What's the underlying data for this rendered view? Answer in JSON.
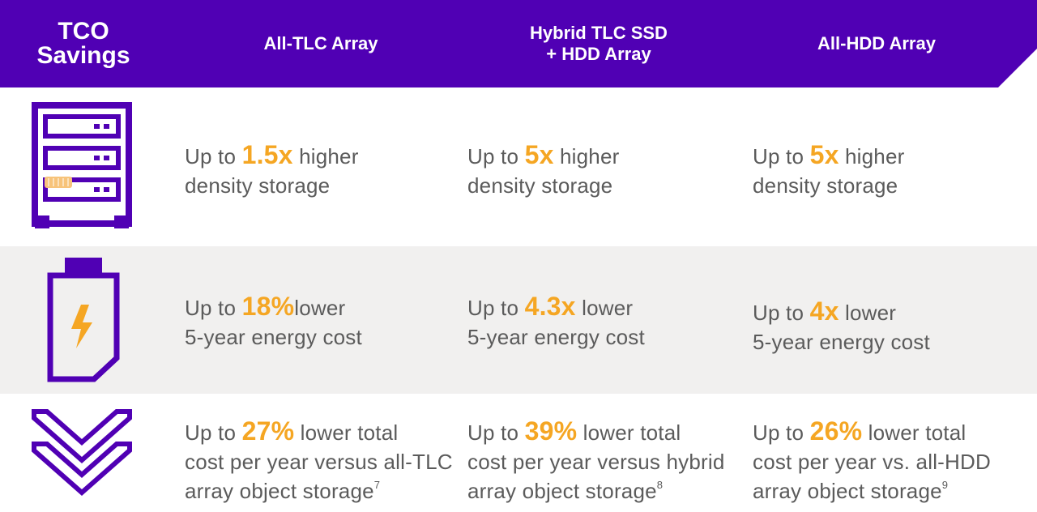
{
  "colors": {
    "brand": "#5000b4",
    "accent": "#f5a623",
    "text": "#5b5b5b",
    "band": "#f1f0ef"
  },
  "header": {
    "corner_title": "TCO\nSavings",
    "columns": [
      "All-TLC Array",
      "Hybrid TLC SSD\n+ HDD Array",
      "All-HDD Array"
    ]
  },
  "rows": [
    {
      "icon": "server-rack-icon",
      "cells": [
        {
          "pre": "Up to ",
          "value": "1.5x",
          "post": " higher",
          "line2": "density storage"
        },
        {
          "pre": "Up to ",
          "value": "5x",
          "post": " higher",
          "line2": "density storage"
        },
        {
          "pre": "Up to ",
          "value": "5x",
          "post": " higher",
          "line2": "density storage"
        }
      ]
    },
    {
      "icon": "battery-energy-icon",
      "cells": [
        {
          "pre": "Up to ",
          "value": "18%",
          "post": "lower",
          "line2": "5-year energy cost"
        },
        {
          "pre": "Up to ",
          "value": "4.3x",
          "post": " lower",
          "line2": "5-year energy cost"
        },
        {
          "pre": "Up to ",
          "value": "4x",
          "post": " lower",
          "line2": "5-year energy cost"
        }
      ]
    },
    {
      "icon": "double-chevron-down-icon",
      "cells": [
        {
          "pre": "Up to ",
          "value": "27%",
          "post": " lower total",
          "line2": "cost per year versus all-TLC",
          "line3": "array object storage",
          "note": "7"
        },
        {
          "pre": "Up to ",
          "value": "39%",
          "post": " lower total",
          "line2": "cost per year versus hybrid",
          "line3": "array object storage",
          "note": "8"
        },
        {
          "pre": "Up to ",
          "value": "26%",
          "post": " lower total",
          "line2": "cost per year vs. all-HDD",
          "line3": "array object storage",
          "note": "9"
        }
      ]
    }
  ]
}
